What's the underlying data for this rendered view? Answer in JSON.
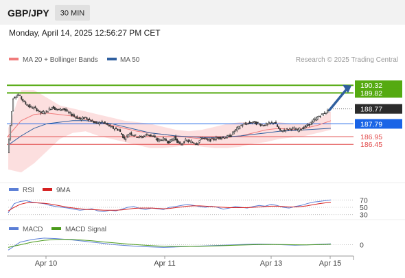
{
  "header": {
    "pair": "GBP/JPY",
    "timeframe": "30 MIN",
    "datetime": "Monday, April 14, 2025 12:56:27 PM CET"
  },
  "legend": {
    "ma20_label": "MA 20 + Bollinger Bands",
    "ma50_label": "MA 50",
    "credit": "Research © 2025 Trading Central",
    "ma20_color": "#f07b7b",
    "ma50_color": "#2f5f9f"
  },
  "rsi_legend": {
    "rsi_label": "RSI",
    "ma_label": "9MA",
    "rsi_color": "#5b7fd6",
    "ma_color": "#d62020"
  },
  "macd_legend": {
    "macd_label": "MACD",
    "signal_label": "MACD Signal",
    "macd_color": "#5b7fd6",
    "signal_color": "#4a9a1a"
  },
  "chart_data": [
    {
      "type": "candlestick",
      "x_labels": [
        "Apr 10",
        "Apr 11",
        "Apr 13",
        "Apr 15"
      ],
      "price_range": [
        184.3,
        191.5
      ],
      "ohlc_path": [
        185.9,
        189.5,
        189.7,
        189.2,
        188.9,
        188.8,
        188.5,
        188.6,
        188.9,
        188.7,
        188.8,
        188.5,
        188.3,
        188.1,
        188.2,
        188.0,
        187.8,
        187.9,
        187.7,
        187.5,
        187.4,
        186.8,
        187.2,
        187.0,
        186.9,
        187.1,
        187.0,
        186.7,
        186.8,
        186.6,
        186.9,
        186.4,
        186.7,
        186.6,
        186.5,
        186.9,
        186.7,
        186.8,
        186.9,
        186.9,
        187.0,
        187.4,
        187.7,
        187.8,
        187.9,
        187.8,
        187.7,
        187.8,
        187.9,
        187.3,
        187.4,
        187.5,
        187.4,
        187.5,
        187.7,
        188.0,
        188.3,
        188.5,
        188.77
      ],
      "ma20": [
        187.0,
        188.0,
        188.4,
        188.5,
        188.4,
        188.3,
        188.1,
        187.9,
        187.7,
        187.5,
        187.3,
        187.2,
        187.1,
        187.0,
        186.9,
        186.8,
        186.8,
        186.9,
        187.0,
        187.2,
        187.4,
        187.5,
        187.4,
        187.5,
        187.7,
        188.0
      ],
      "ma50": [
        186.4,
        187.0,
        187.5,
        187.8,
        187.9,
        188.0,
        188.0,
        187.9,
        187.8,
        187.6,
        187.4,
        187.2,
        187.1,
        187.0,
        186.95,
        186.9,
        186.9,
        186.95,
        187.0,
        187.1,
        187.2,
        187.3,
        187.35,
        187.4,
        187.45,
        187.5
      ],
      "bollinger_upper": [
        187.5,
        190.0,
        190.0,
        189.5,
        189.0,
        188.8,
        188.6,
        188.4,
        188.2,
        188.0,
        187.9,
        187.8,
        187.6,
        187.4,
        187.3,
        187.4,
        187.6,
        187.8,
        187.9,
        187.9,
        187.8,
        187.9,
        187.8,
        187.8,
        188.1,
        188.6
      ],
      "bollinger_lower": [
        184.8,
        184.6,
        185.2,
        186.0,
        186.8,
        187.2,
        187.3,
        187.0,
        186.8,
        186.6,
        186.4,
        186.2,
        186.2,
        186.3,
        186.4,
        186.3,
        186.2,
        186.2,
        186.3,
        186.5,
        186.6,
        186.8,
        186.9,
        187.0,
        187.2,
        187.4
      ],
      "horizontal_levels": [
        {
          "value": 190.32,
          "label": "190.32",
          "color": "#55aa11"
        },
        {
          "value": 189.82,
          "label": "189.82",
          "color": "#55aa11"
        },
        {
          "value": 187.79,
          "label": "187.79",
          "color": "#1a64e6"
        },
        {
          "value": 186.95,
          "label": "186.95",
          "color": "#e24b4b"
        },
        {
          "value": 186.45,
          "label": "186.45",
          "color": "#e24b4b"
        }
      ],
      "current_price": {
        "value": 188.77,
        "label": "188.77"
      },
      "arrow": {
        "direction": "up",
        "color": "#2f5f9f"
      }
    },
    {
      "type": "line",
      "name": "RSI",
      "y_ticks": [
        70,
        50,
        30
      ],
      "y_range": [
        20,
        80
      ],
      "rsi": [
        35,
        60,
        66,
        68,
        64,
        62,
        60,
        55,
        52,
        50,
        48,
        45,
        42,
        44,
        46,
        40,
        38,
        42,
        40,
        45,
        50,
        52,
        47,
        44,
        48,
        46,
        44,
        50,
        52,
        55,
        58,
        55,
        52,
        50,
        53,
        50,
        45,
        48,
        52,
        50,
        48,
        52,
        55,
        53,
        58,
        55,
        50,
        48,
        52,
        55,
        60,
        64,
        66,
        68,
        70
      ],
      "ma9": [
        40,
        50,
        58,
        62,
        63,
        62,
        61,
        59,
        56,
        53,
        50,
        48,
        46,
        44,
        44,
        43,
        42,
        42,
        42,
        43,
        45,
        47,
        48,
        48,
        48,
        47,
        46,
        47,
        49,
        51,
        53,
        54,
        54,
        53,
        52,
        51,
        50,
        49,
        49,
        49,
        49,
        50,
        51,
        52,
        53,
        53,
        52,
        51,
        51,
        52,
        54,
        57,
        60,
        62,
        64
      ]
    },
    {
      "type": "line",
      "name": "MACD",
      "y_ticks": [
        0
      ],
      "y_range": [
        -1.2,
        0.9
      ],
      "macd": [
        -0.6,
        0.3,
        0.6,
        0.75,
        0.7,
        0.6,
        0.45,
        0.3,
        0.15,
        0.0,
        -0.1,
        -0.2,
        -0.25,
        -0.3,
        -0.25,
        -0.2,
        -0.15,
        -0.1,
        -0.05,
        0.0,
        0.05,
        0.08,
        0.05,
        0.0,
        -0.05,
        -0.02,
        0.05,
        0.1
      ],
      "signal": [
        -0.3,
        0.0,
        0.3,
        0.5,
        0.6,
        0.62,
        0.55,
        0.45,
        0.32,
        0.2,
        0.08,
        -0.02,
        -0.1,
        -0.17,
        -0.2,
        -0.2,
        -0.18,
        -0.14,
        -0.1,
        -0.06,
        -0.02,
        0.02,
        0.03,
        0.02,
        0.0,
        -0.01,
        0.01,
        0.05
      ]
    }
  ]
}
